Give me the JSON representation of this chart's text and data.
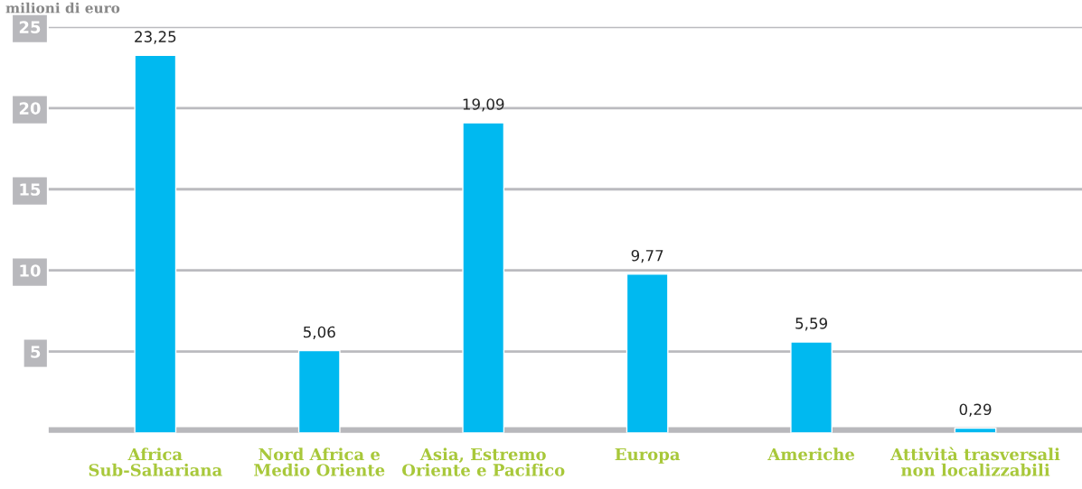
{
  "chart_data": {
    "type": "bar",
    "ylabel": "milioni di euro",
    "categories": [
      "Africa\nSub-Sahariana",
      "Nord Africa e\nMedio Oriente",
      "Asia, Estremo\nOriente e Pacifico",
      "Europa",
      "Americhe",
      "Attività trasversali\nnon localizzabili"
    ],
    "values": [
      23.25,
      5.06,
      19.09,
      9.77,
      5.59,
      0.29
    ],
    "value_labels": [
      "23,25",
      "5,06",
      "19,09",
      "9,77",
      "5,59",
      "0,29"
    ],
    "color": "#00b9f0",
    "ylim": [
      0,
      25
    ],
    "yticks": [
      5,
      10,
      15,
      20,
      25
    ],
    "grid": "y"
  }
}
